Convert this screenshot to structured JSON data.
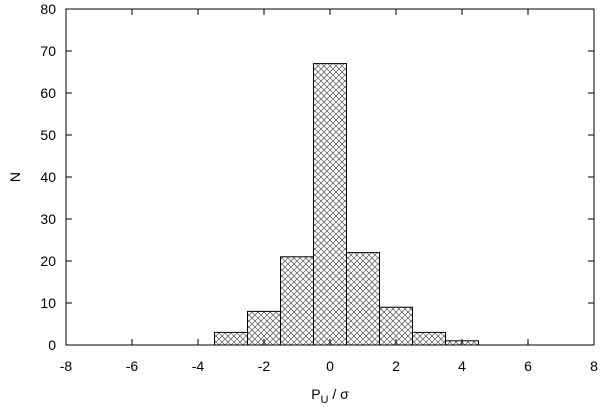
{
  "chart_data": {
    "type": "bar",
    "title": "",
    "xlabel_main": "P",
    "xlabel_sub": "U",
    "xlabel_tail": " / σ",
    "ylabel": "N",
    "xlim": [
      -8,
      8
    ],
    "ylim": [
      0,
      80
    ],
    "xticks": [
      -8,
      -6,
      -4,
      -2,
      0,
      2,
      4,
      6,
      8
    ],
    "yticks": [
      0,
      10,
      20,
      30,
      40,
      50,
      60,
      70,
      80
    ],
    "bin_width": 1,
    "bins": [
      {
        "center": -3,
        "value": 3
      },
      {
        "center": -2,
        "value": 8
      },
      {
        "center": -1,
        "value": 21
      },
      {
        "center": 0,
        "value": 67
      },
      {
        "center": 1,
        "value": 22
      },
      {
        "center": 2,
        "value": 9
      },
      {
        "center": 3,
        "value": 3
      },
      {
        "center": 4,
        "value": 1
      }
    ],
    "grid": false,
    "bar_fill": "crosshatch",
    "colors": {
      "bar_stroke": "#000000",
      "hatch": "#555555",
      "axis": "#000000"
    }
  }
}
